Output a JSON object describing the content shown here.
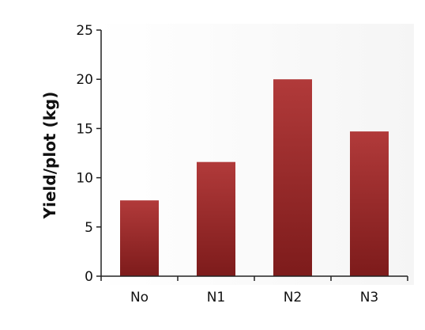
{
  "chart_data": {
    "type": "bar",
    "title": "",
    "xlabel": "",
    "ylabel": "Yield/plot (kg)",
    "categories": [
      "No",
      "N1",
      "N2",
      "N3"
    ],
    "values": [
      7.7,
      11.6,
      20.0,
      14.7
    ],
    "ylim": [
      0,
      25
    ],
    "yticks": [
      0,
      5,
      10,
      15,
      20,
      25
    ],
    "grid": false,
    "legend": "none",
    "colors": {
      "bar_top": "#b13a3a",
      "bar_bottom": "#7d1b1b",
      "axis": "#222222",
      "background_panel": "#f7f7f7"
    }
  }
}
